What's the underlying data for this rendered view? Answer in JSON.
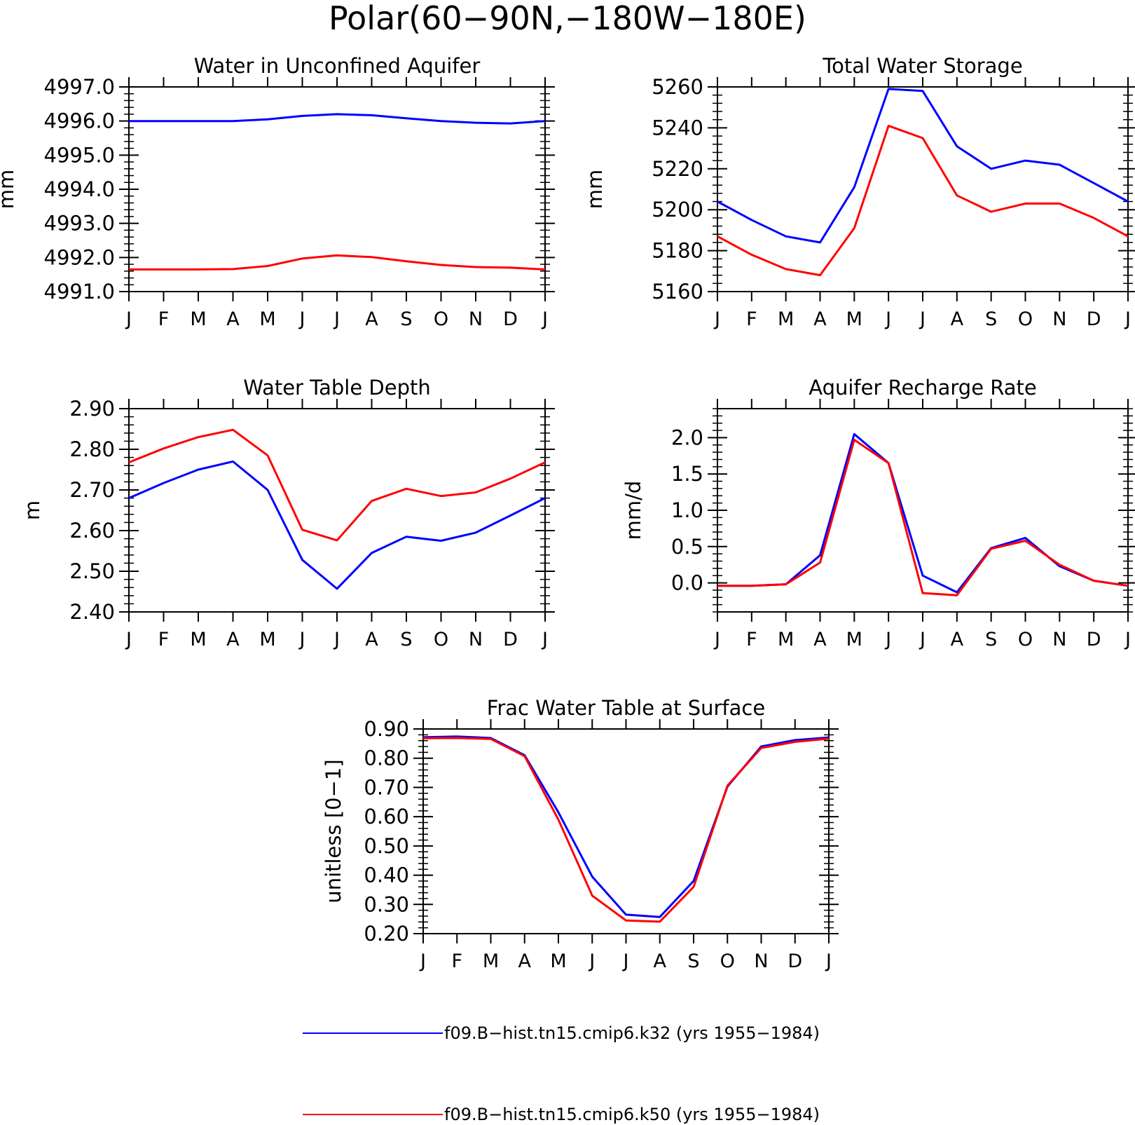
{
  "figure_title": "Polar(60−90N,−180W−180E)",
  "series_legend": [
    {
      "label": "f09.B−hist.tn15.cmip6.k32 (yrs 1955−1984)",
      "color": "#0000ff"
    },
    {
      "label": "f09.B−hist.tn15.cmip6.k50 (yrs 1955−1984)",
      "color": "#ff0000"
    }
  ],
  "chart_data": [
    {
      "type": "line",
      "title": "Water in Unconfined Aquifer",
      "ylabel": "mm",
      "xlabel": "",
      "categories": [
        "J",
        "F",
        "M",
        "A",
        "M",
        "J",
        "J",
        "A",
        "S",
        "O",
        "N",
        "D",
        "J"
      ],
      "ylim": [
        4991.0,
        4997.0
      ],
      "yticks": [
        "4991.0",
        "4992.0",
        "4993.0",
        "4994.0",
        "4995.0",
        "4996.0",
        "4997.0"
      ],
      "series": [
        {
          "name": "f09.B−hist.tn15.cmip6.k32 (yrs 1955−1984)",
          "color": "#0000ff",
          "values": [
            4996.0,
            4996.0,
            4996.0,
            4996.0,
            4996.05,
            4996.15,
            4996.2,
            4996.17,
            4996.08,
            4996.0,
            4995.95,
            4995.93,
            4996.0
          ]
        },
        {
          "name": "f09.B−hist.tn15.cmip6.k50 (yrs 1955−1984)",
          "color": "#ff0000",
          "values": [
            4991.65,
            4991.65,
            4991.65,
            4991.66,
            4991.75,
            4991.97,
            4992.06,
            4992.01,
            4991.89,
            4991.78,
            4991.72,
            4991.7,
            4991.65
          ]
        }
      ]
    },
    {
      "type": "line",
      "title": "Total Water Storage",
      "ylabel": "mm",
      "xlabel": "",
      "categories": [
        "J",
        "F",
        "M",
        "A",
        "M",
        "J",
        "J",
        "A",
        "S",
        "O",
        "N",
        "D",
        "J"
      ],
      "ylim": [
        5160,
        5260
      ],
      "yticks": [
        "5160",
        "5180",
        "5200",
        "5220",
        "5240",
        "5260"
      ],
      "series": [
        {
          "name": "f09.B−hist.tn15.cmip6.k32 (yrs 1955−1984)",
          "color": "#0000ff",
          "values": [
            5204,
            5195,
            5187,
            5184,
            5211,
            5259,
            5258,
            5231,
            5220,
            5224,
            5222,
            5213,
            5204
          ]
        },
        {
          "name": "f09.B−hist.tn15.cmip6.k50 (yrs 1955−1984)",
          "color": "#ff0000",
          "values": [
            5187,
            5178,
            5171,
            5168,
            5191,
            5241,
            5235,
            5207,
            5199,
            5203,
            5203,
            5196,
            5187
          ]
        }
      ]
    },
    {
      "type": "line",
      "title": "Water Table Depth",
      "ylabel": "m",
      "xlabel": "",
      "categories": [
        "J",
        "F",
        "M",
        "A",
        "M",
        "J",
        "J",
        "A",
        "S",
        "O",
        "N",
        "D",
        "J"
      ],
      "ylim": [
        2.4,
        2.9
      ],
      "yticks": [
        "2.40",
        "2.50",
        "2.60",
        "2.70",
        "2.80",
        "2.90"
      ],
      "series": [
        {
          "name": "f09.B−hist.tn15.cmip6.k32 (yrs 1955−1984)",
          "color": "#0000ff",
          "values": [
            2.68,
            2.717,
            2.75,
            2.77,
            2.7,
            2.528,
            2.457,
            2.545,
            2.585,
            2.575,
            2.595,
            2.637,
            2.68
          ]
        },
        {
          "name": "f09.B−hist.tn15.cmip6.k50 (yrs 1955−1984)",
          "color": "#ff0000",
          "values": [
            2.768,
            2.802,
            2.83,
            2.848,
            2.785,
            2.602,
            2.576,
            2.673,
            2.703,
            2.685,
            2.694,
            2.728,
            2.768
          ]
        }
      ]
    },
    {
      "type": "line",
      "title": "Aquifer Recharge Rate",
      "ylabel": "mm/d",
      "xlabel": "",
      "categories": [
        "J",
        "F",
        "M",
        "A",
        "M",
        "J",
        "J",
        "A",
        "S",
        "O",
        "N",
        "D",
        "J"
      ],
      "ylim": [
        -0.4,
        2.4
      ],
      "yticks": [
        "0.0",
        "0.5",
        "1.0",
        "1.5",
        "2.0"
      ],
      "ytick_values": [
        0.0,
        0.5,
        1.0,
        1.5,
        2.0
      ],
      "series": [
        {
          "name": "f09.B−hist.tn15.cmip6.k32 (yrs 1955−1984)",
          "color": "#0000ff",
          "values": [
            -0.04,
            -0.04,
            -0.02,
            0.38,
            2.05,
            1.65,
            0.1,
            -0.13,
            0.48,
            0.62,
            0.23,
            0.03,
            -0.04
          ]
        },
        {
          "name": "f09.B−hist.tn15.cmip6.k50 (yrs 1955−1984)",
          "color": "#ff0000",
          "values": [
            -0.04,
            -0.04,
            -0.02,
            0.28,
            1.97,
            1.65,
            -0.14,
            -0.17,
            0.47,
            0.58,
            0.25,
            0.03,
            -0.04
          ]
        }
      ]
    },
    {
      "type": "line",
      "title": "Frac Water Table at Surface",
      "ylabel": "unitless [0−1]",
      "xlabel": "",
      "categories": [
        "J",
        "F",
        "M",
        "A",
        "M",
        "J",
        "J",
        "A",
        "S",
        "O",
        "N",
        "D",
        "J"
      ],
      "ylim": [
        0.2,
        0.9
      ],
      "yticks": [
        "0.20",
        "0.30",
        "0.40",
        "0.50",
        "0.60",
        "0.70",
        "0.80",
        "0.90"
      ],
      "series": [
        {
          "name": "f09.B−hist.tn15.cmip6.k32 (yrs 1955−1984)",
          "color": "#0000ff",
          "values": [
            0.872,
            0.874,
            0.869,
            0.81,
            0.615,
            0.395,
            0.265,
            0.257,
            0.38,
            0.703,
            0.84,
            0.862,
            0.871
          ]
        },
        {
          "name": "f09.B−hist.tn15.cmip6.k50 (yrs 1955−1984)",
          "color": "#ff0000",
          "values": [
            0.868,
            0.869,
            0.866,
            0.807,
            0.59,
            0.33,
            0.245,
            0.241,
            0.36,
            0.706,
            0.835,
            0.856,
            0.867
          ]
        }
      ]
    }
  ]
}
